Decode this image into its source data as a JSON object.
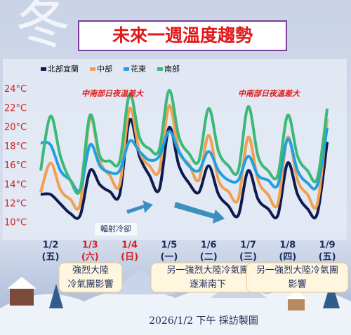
{
  "chart_data": {
    "type": "line",
    "watermark": "冬",
    "title": "未來一週溫度趨勢",
    "categories": [
      null,
      "1/2",
      null,
      null,
      null,
      "1/3",
      null,
      null,
      null,
      "1/4",
      null,
      null,
      null,
      "1/5",
      null,
      null,
      null,
      "1/6",
      null,
      null,
      null,
      "1/7",
      null,
      null,
      null,
      "1/8",
      null,
      null,
      null,
      "1/9"
    ],
    "weekday_labels": [
      "(五)",
      "(六)",
      "(日)",
      "(一)",
      "(二)",
      "(三)",
      "(四)",
      "(五)"
    ],
    "date_label_colors": [
      "#1a2a5a",
      "#d42020",
      "#d42020",
      "#1a2a5a",
      "#1a2a5a",
      "#1a2a5a",
      "#1a2a5a",
      "#1a2a5a"
    ],
    "series": [
      {
        "name": "北部宜蘭",
        "color": "#0d1b4f",
        "values": [
          13,
          13,
          12,
          11,
          10.8,
          15.5,
          14,
          13.3,
          13,
          20.8,
          17,
          15,
          13.5,
          20,
          16,
          14.2,
          13.2,
          16,
          13,
          11.8,
          10.8,
          15.5,
          12.5,
          11.5,
          10.8,
          16.3,
          13,
          11.5,
          11,
          18.5
        ]
      },
      {
        "name": "中部",
        "color": "#f0a050",
        "values": [
          13.2,
          16.3,
          13.5,
          12.5,
          12,
          21,
          16.5,
          15,
          14,
          22,
          17.5,
          16,
          15.5,
          22.3,
          17.5,
          16.2,
          14.5,
          19.2,
          14.5,
          13.3,
          12.5,
          19,
          14.5,
          13,
          12,
          19,
          14.5,
          13,
          12,
          21
        ]
      },
      {
        "name": "花東",
        "color": "#20a0e0",
        "values": [
          18.4,
          18.2,
          15.5,
          14.5,
          13.5,
          18.2,
          16,
          15.3,
          15.5,
          18.6,
          17.5,
          16.6,
          17,
          19.6,
          17.5,
          16,
          15.5,
          17.5,
          15.5,
          14.5,
          14.5,
          17,
          15,
          14.5,
          14,
          18.8,
          15.5,
          14.2,
          14,
          20
        ]
      },
      {
        "name": "南部",
        "color": "#3cb878",
        "values": [
          15.5,
          21.2,
          17,
          14.5,
          13.5,
          21.3,
          17,
          16.5,
          16.5,
          23.5,
          19,
          17.8,
          17.7,
          23.9,
          19,
          17.3,
          16.5,
          22,
          17.5,
          16,
          15.5,
          22.2,
          17,
          15.5,
          15,
          21.3,
          17,
          15.5,
          14.7,
          22
        ]
      }
    ],
    "ylim": [
      8.4,
      26.4
    ],
    "yticks": [
      {
        "value": 10,
        "label": "10°C"
      },
      {
        "value": 12,
        "label": "12°C"
      },
      {
        "value": 14,
        "label": "14°C"
      },
      {
        "value": 16,
        "label": "16°C"
      },
      {
        "value": 18,
        "label": "18°C"
      },
      {
        "value": 20,
        "label": "20°C"
      },
      {
        "value": 22,
        "label": "22°C"
      },
      {
        "value": 24,
        "label": "24°C"
      }
    ],
    "grid": false,
    "annotations": [
      "中南部日夜溫差大",
      "中南部日夜溫差大",
      "輻射冷卻"
    ],
    "notes": [
      [
        "強烈大陸",
        "冷氣團影響"
      ],
      [
        "另一強烈大陸冷氣團",
        "逐漸南下"
      ],
      [
        "另一強烈大陸冷氣團",
        "影響"
      ]
    ],
    "footer": "2026/1/2 下午 採訪製圖"
  }
}
